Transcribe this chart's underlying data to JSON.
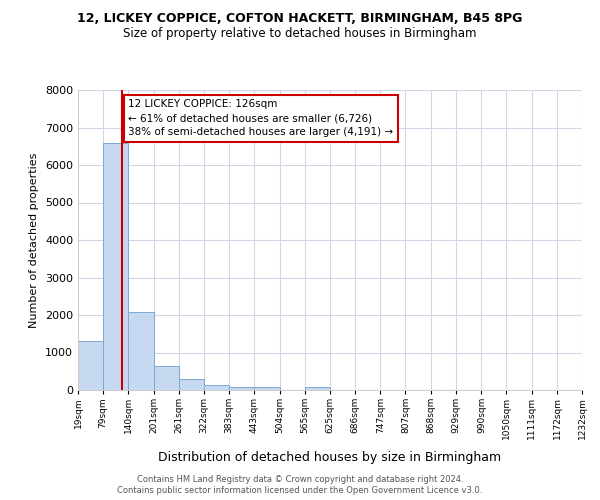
{
  "title1": "12, LICKEY COPPICE, COFTON HACKETT, BIRMINGHAM, B45 8PG",
  "title2": "Size of property relative to detached houses in Birmingham",
  "xlabel": "Distribution of detached houses by size in Birmingham",
  "ylabel": "Number of detached properties",
  "bar_edges": [
    19,
    79,
    140,
    201,
    261,
    322,
    383,
    443,
    504,
    565,
    625,
    686,
    747,
    807,
    868,
    929,
    990,
    1050,
    1111,
    1172,
    1232
  ],
  "bar_heights": [
    1320,
    6600,
    2080,
    650,
    300,
    140,
    90,
    80,
    0,
    90,
    0,
    0,
    0,
    0,
    0,
    0,
    0,
    0,
    0,
    0
  ],
  "bar_color": "#c6d9f1",
  "bar_edgecolor": "#7fa8d1",
  "red_line_x": 126,
  "ylim": [
    0,
    8000
  ],
  "annotation_line1": "12 LICKEY COPPICE: 126sqm",
  "annotation_line2": "← 61% of detached houses are smaller (6,726)",
  "annotation_line3": "38% of semi-detached houses are larger (4,191) →",
  "annotation_box_color": "#ffffff",
  "annotation_box_edgecolor": "#cc0000",
  "red_line_color": "#cc0000",
  "footer1": "Contains HM Land Registry data © Crown copyright and database right 2024.",
  "footer2": "Contains public sector information licensed under the Open Government Licence v3.0.",
  "bg_color": "#ffffff",
  "plot_bg_color": "#ffffff",
  "grid_color": "#d0d8e8",
  "tick_labels": [
    "19sqm",
    "79sqm",
    "140sqm",
    "201sqm",
    "261sqm",
    "322sqm",
    "383sqm",
    "443sqm",
    "504sqm",
    "565sqm",
    "625sqm",
    "686sqm",
    "747sqm",
    "807sqm",
    "868sqm",
    "929sqm",
    "990sqm",
    "1050sqm",
    "1111sqm",
    "1172sqm",
    "1232sqm"
  ]
}
